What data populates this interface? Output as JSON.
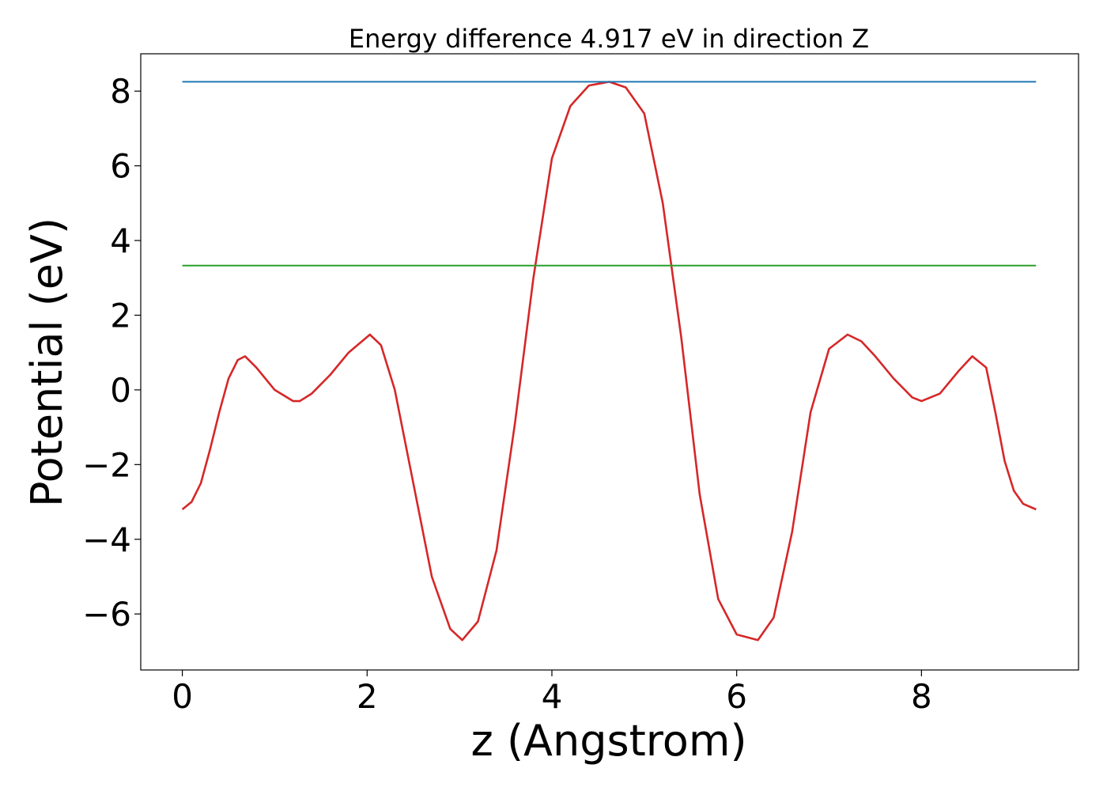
{
  "chart_data": {
    "type": "line",
    "title": "Energy difference 4.917 eV in direction Z",
    "xlabel": "z (Angstrom)",
    "ylabel": "Potential (eV)",
    "xlim": [
      -0.45,
      9.7
    ],
    "ylim": [
      -7.5,
      9.0
    ],
    "xticks": [
      0,
      2,
      4,
      6,
      8
    ],
    "xtick_labels": [
      "0",
      "2",
      "4",
      "6",
      "8"
    ],
    "yticks": [
      -6,
      -4,
      -2,
      0,
      2,
      4,
      6,
      8
    ],
    "ytick_labels": [
      "−6",
      "−4",
      "−2",
      "0",
      "2",
      "4",
      "6",
      "8"
    ],
    "grid": false,
    "series": [
      {
        "color": "#d62728",
        "x": [
          0,
          0.1,
          0.2,
          0.3,
          0.4,
          0.5,
          0.6,
          0.68,
          0.8,
          1.0,
          1.2,
          1.27,
          1.4,
          1.6,
          1.8,
          2.03,
          2.15,
          2.3,
          2.5,
          2.7,
          2.9,
          3.03,
          3.2,
          3.4,
          3.6,
          3.8,
          4.0,
          4.2,
          4.4,
          4.62,
          4.8,
          5.0,
          5.2,
          5.4,
          5.6,
          5.8,
          6.0,
          6.23,
          6.4,
          6.6,
          6.8,
          7.0,
          7.2,
          7.35,
          7.5,
          7.7,
          7.9,
          8.0,
          8.2,
          8.4,
          8.55,
          8.7,
          8.8,
          8.9,
          9.0,
          9.1,
          9.24
        ],
        "y": [
          -3.2,
          -3.0,
          -2.5,
          -1.6,
          -0.6,
          0.3,
          0.8,
          0.9,
          0.6,
          0.0,
          -0.3,
          -0.3,
          -0.1,
          0.4,
          1.0,
          1.48,
          1.2,
          0.0,
          -2.5,
          -5.0,
          -6.4,
          -6.7,
          -6.2,
          -4.3,
          -0.9,
          3.0,
          6.2,
          7.6,
          8.15,
          8.25,
          8.1,
          7.4,
          5.0,
          1.4,
          -2.8,
          -5.6,
          -6.55,
          -6.7,
          -6.1,
          -3.8,
          -0.6,
          1.1,
          1.48,
          1.3,
          0.9,
          0.3,
          -0.2,
          -0.3,
          -0.1,
          0.5,
          0.9,
          0.6,
          -0.6,
          -1.9,
          -2.7,
          -3.05,
          -3.2
        ]
      },
      {
        "color": "#1f77b4",
        "x": [
          0,
          9.24
        ],
        "y": [
          8.25,
          8.25
        ]
      },
      {
        "color": "#2ca02c",
        "x": [
          0,
          9.24
        ],
        "y": [
          3.33,
          3.33
        ]
      }
    ]
  }
}
